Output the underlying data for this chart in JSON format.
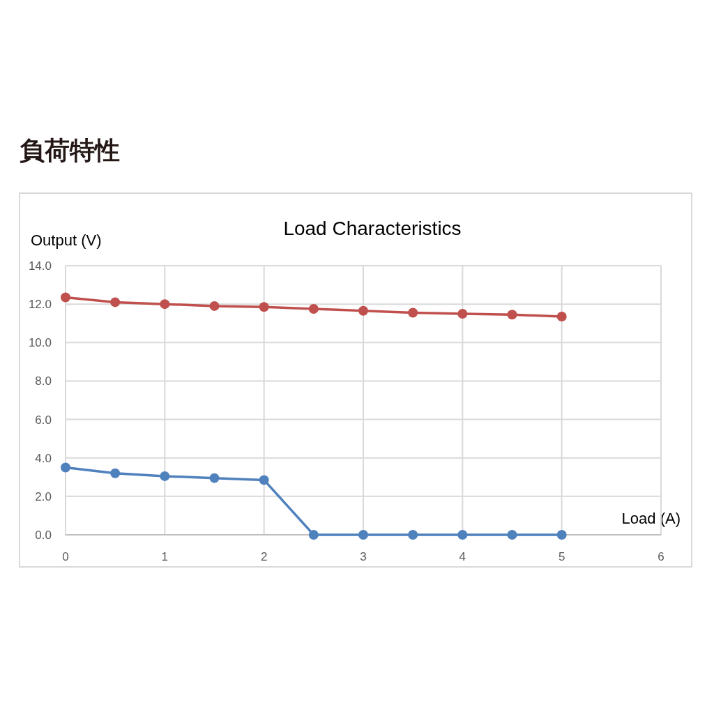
{
  "chart_data": {
    "type": "line",
    "title": "負荷特性",
    "subtitle": "Load Characteristics",
    "xlabel": "Load (A)",
    "ylabel": "Output (V)",
    "x": [
      0,
      0.5,
      1,
      1.5,
      2,
      2.5,
      3,
      3.5,
      4,
      4.5,
      5
    ],
    "series": [
      {
        "color": "#c0504d",
        "values": [
          12.35,
          12.1,
          12.0,
          11.9,
          11.85,
          11.75,
          11.65,
          11.55,
          11.5,
          11.45,
          11.35
        ]
      },
      {
        "color": "#4f81bd",
        "values": [
          3.5,
          3.2,
          3.05,
          2.95,
          2.85,
          0,
          0,
          0,
          0,
          0,
          0
        ]
      }
    ],
    "xlim": [
      0,
      6
    ],
    "ylim": [
      0,
      14
    ],
    "xticks": [
      0,
      1,
      2,
      3,
      4,
      5,
      6
    ],
    "yticks": [
      {
        "value": 0,
        "label": "0.0"
      },
      {
        "value": 2,
        "label": "2.0"
      },
      {
        "value": 4,
        "label": "4.0"
      },
      {
        "value": 6,
        "label": "6.0"
      },
      {
        "value": 8,
        "label": "8.0"
      },
      {
        "value": 10,
        "label": "10.0"
      },
      {
        "value": 12,
        "label": "12.0"
      },
      {
        "value": 14,
        "label": "14.0"
      }
    ],
    "grid": true,
    "marker": "circle",
    "line_style": "solid"
  }
}
